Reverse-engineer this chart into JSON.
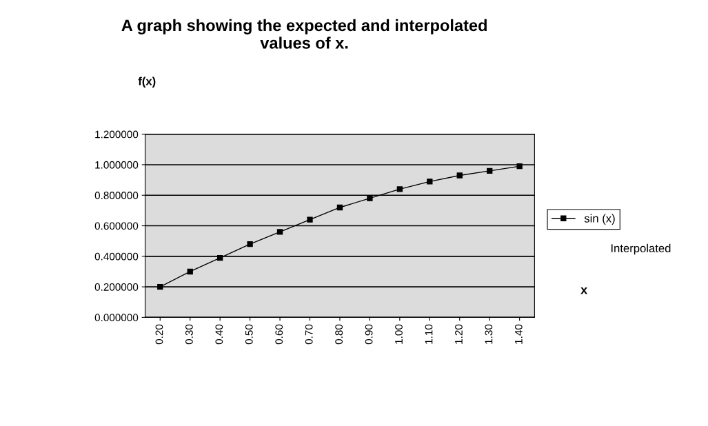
{
  "chart_data": {
    "type": "line",
    "title": "A graph showing the expected and interpolated\nvalues of x.",
    "xlabel": "x",
    "ylabel": "f(x)",
    "categories": [
      "0.20",
      "0.30",
      "0.40",
      "0.50",
      "0.60",
      "0.70",
      "0.80",
      "0.90",
      "1.00",
      "1.10",
      "1.20",
      "1.30",
      "1.40"
    ],
    "series": [
      {
        "name": "sin (x)",
        "color": "#000000",
        "values": [
          0.2,
          0.3,
          0.39,
          0.48,
          0.56,
          0.64,
          0.72,
          0.78,
          0.84,
          0.89,
          0.93,
          0.96,
          0.99
        ]
      }
    ],
    "ylim": [
      0,
      1.2
    ],
    "yticks": [
      {
        "value": 0,
        "label": "0.000000"
      },
      {
        "value": 0.2,
        "label": "0.200000"
      },
      {
        "value": 0.4,
        "label": "0.400000"
      },
      {
        "value": 0.6,
        "label": "0.600000"
      },
      {
        "value": 0.8,
        "label": "0.800000"
      },
      {
        "value": 1.0,
        "label": "1.000000"
      },
      {
        "value": 1.2,
        "label": "1.200000"
      }
    ],
    "grid": "y",
    "legend": "right",
    "marker": "square",
    "line_style": "solid",
    "annotations": [
      "Interpolated"
    ]
  }
}
